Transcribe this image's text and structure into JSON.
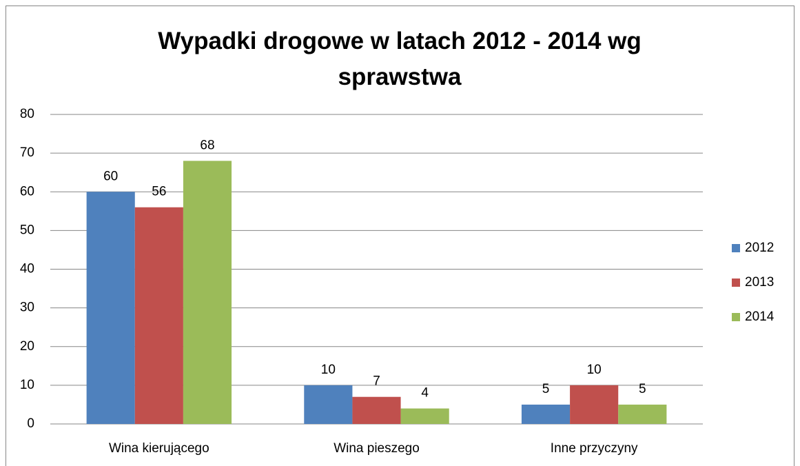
{
  "chart_data": {
    "type": "bar",
    "title": "Wypadki drogowe w latach 2012 - 2014 wg sprawstwa",
    "categories": [
      "Wina kierującego",
      "Wina pieszego",
      "Inne przyczyny"
    ],
    "series": [
      {
        "name": "2012",
        "color": "#4f81bd",
        "values": [
          60,
          10,
          5
        ]
      },
      {
        "name": "2013",
        "color": "#c0504d",
        "values": [
          56,
          7,
          10
        ]
      },
      {
        "name": "2014",
        "color": "#9bbb59",
        "values": [
          68,
          4,
          5
        ]
      }
    ],
    "ylim": [
      0,
      80
    ],
    "yticks": [
      0,
      10,
      20,
      30,
      40,
      50,
      60,
      70,
      80
    ],
    "grid": true,
    "legend": "right",
    "data_labels": true
  }
}
